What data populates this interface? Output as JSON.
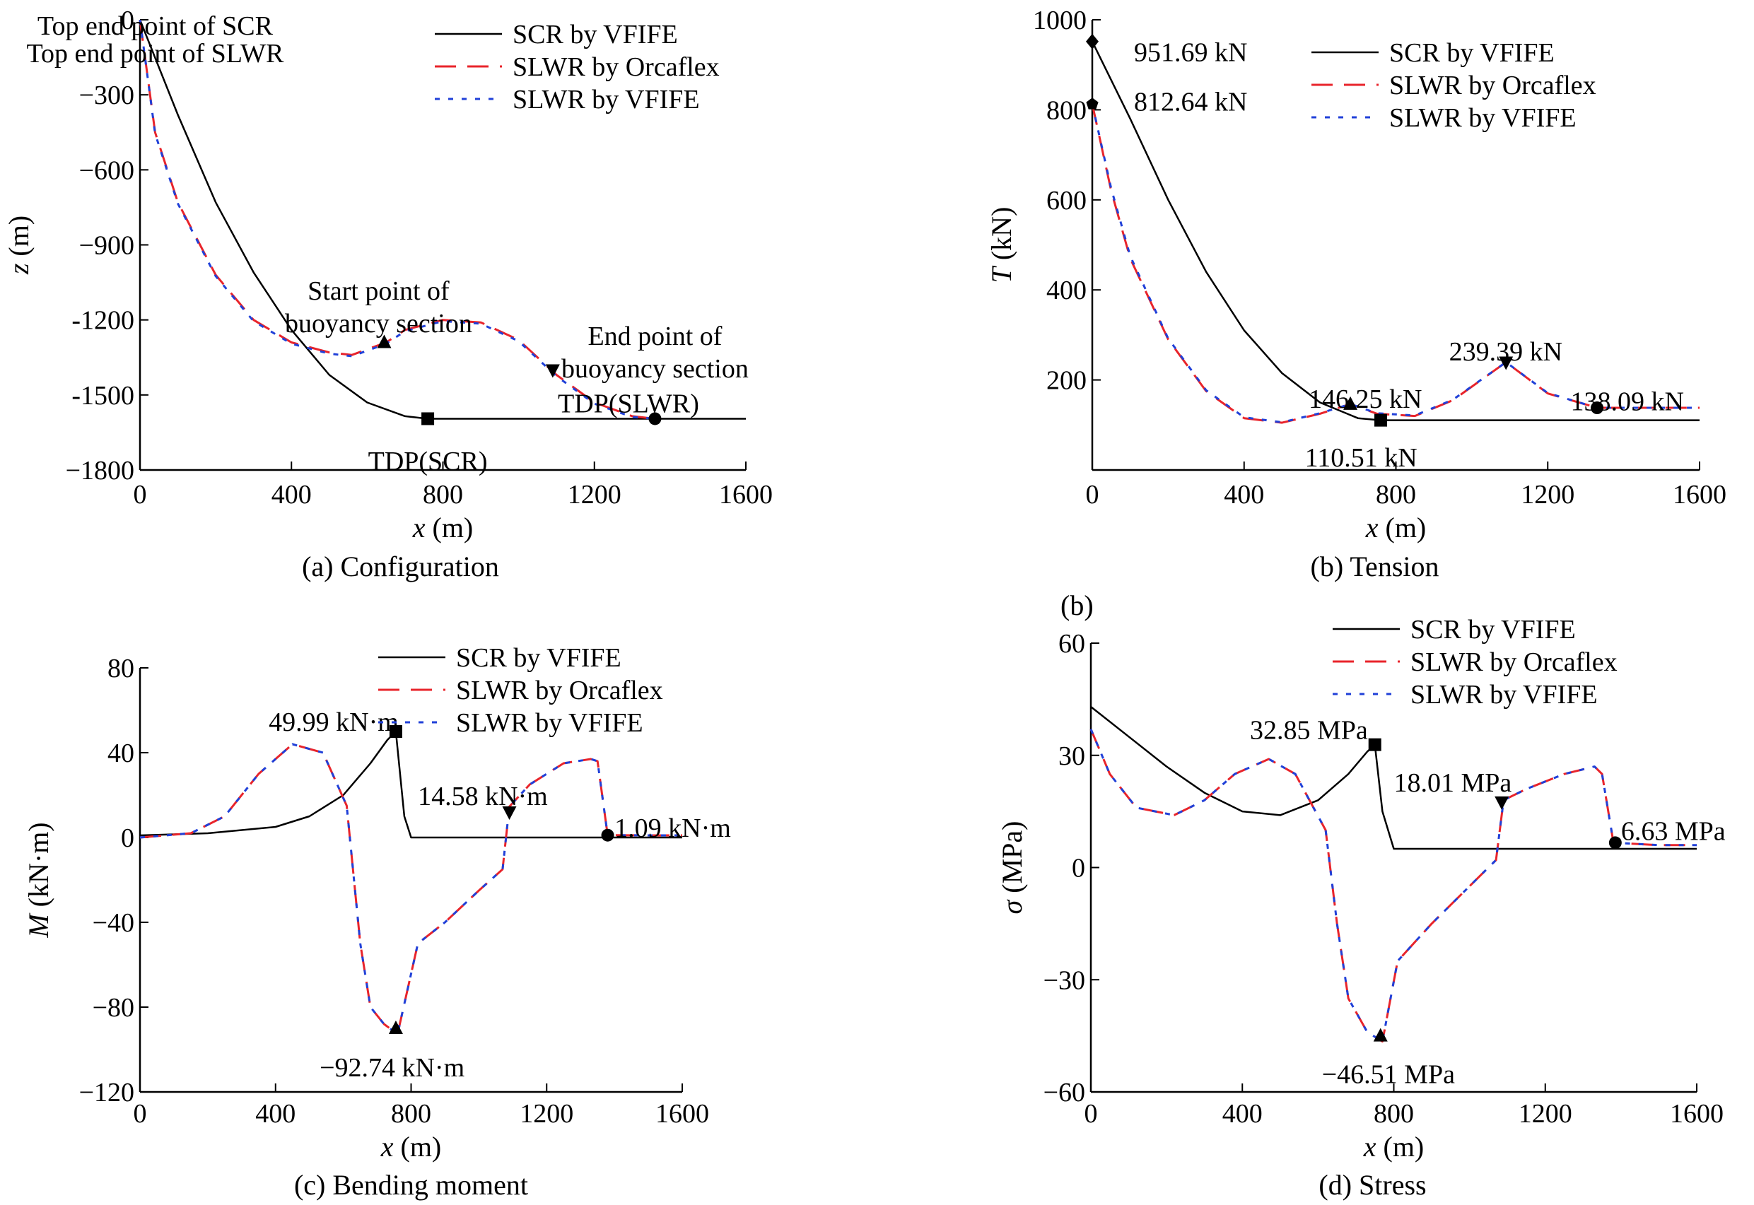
{
  "chart_data": [
    {
      "type": "line",
      "caption": "(a) Configuration",
      "xlabel_var": "x",
      "xlabel_unit": " (m)",
      "ylabel_var": "z",
      "ylabel_unit": " (m)",
      "xlim": [
        0,
        1600
      ],
      "ylim": [
        -1800,
        0
      ],
      "xticks": [
        0,
        400,
        800,
        1200,
        1600
      ],
      "yticks": [
        0,
        -300,
        -600,
        -900,
        -1200,
        -1500,
        -1800
      ],
      "ytick_labels": [
        "0",
        "−300",
        "−600",
        "−900",
        "-1200",
        "-1500",
        "−1800"
      ],
      "legend": [
        "SCR by VFIFE",
        "SLWR by Orcaflex",
        "SLWR by VFIFE"
      ],
      "series": [
        {
          "name": "SCR by VFIFE",
          "style": "solid",
          "x": [
            0,
            100,
            200,
            300,
            400,
            500,
            600,
            700,
            760,
            1600
          ],
          "y": [
            0,
            -380,
            -730,
            -1010,
            -1240,
            -1420,
            -1530,
            -1585,
            -1595,
            -1595
          ]
        },
        {
          "name": "SLWR by Orcaflex",
          "style": "dash",
          "x": [
            0,
            40,
            100,
            200,
            300,
            400,
            500,
            560,
            650,
            700,
            800,
            900,
            1000,
            1100,
            1200,
            1300,
            1360
          ],
          "y": [
            0,
            -450,
            -730,
            -1020,
            -1200,
            -1290,
            -1330,
            -1340,
            -1290,
            -1240,
            -1200,
            -1210,
            -1280,
            -1420,
            -1530,
            -1585,
            -1595
          ]
        },
        {
          "name": "SLWR by VFIFE",
          "style": "dot",
          "x": [
            0,
            40,
            100,
            200,
            300,
            400,
            500,
            560,
            650,
            700,
            800,
            900,
            1000,
            1100,
            1200,
            1300,
            1360
          ],
          "y": [
            0,
            -455,
            -735,
            -1025,
            -1205,
            -1295,
            -1335,
            -1345,
            -1295,
            -1245,
            -1205,
            -1215,
            -1285,
            -1425,
            -1535,
            -1588,
            -1595
          ]
        }
      ],
      "markers": [
        {
          "shape": "triangle-up",
          "x": 645,
          "y": -1290
        },
        {
          "shape": "triangle-down",
          "x": 1090,
          "y": -1400
        },
        {
          "shape": "square",
          "x": 760,
          "y": -1595
        },
        {
          "shape": "circle",
          "x": 1360,
          "y": -1595
        }
      ],
      "annotations": [
        {
          "text": "Top end point of SCR",
          "x": 40,
          "y": -20
        },
        {
          "text": "Top end point of SLWR",
          "x": 40,
          "y": -130
        },
        {
          "text": "Start point of",
          "x": 630,
          "y": -1080
        },
        {
          "text": "buoyancy section",
          "x": 630,
          "y": -1210
        },
        {
          "text": "End point of",
          "x": 1360,
          "y": -1260
        },
        {
          "text": "buoyancy section",
          "x": 1360,
          "y": -1390
        },
        {
          "text": "TDP(SLWR)",
          "x": 1290,
          "y": -1530
        },
        {
          "text": "TDP(SCR)",
          "x": 760,
          "y": -1760
        }
      ]
    },
    {
      "type": "line",
      "caption": "(b) Tension",
      "side_label": "(b)",
      "xlabel_var": "x",
      "xlabel_unit": " (m)",
      "ylabel_var": "T",
      "ylabel_unit": " (kN)",
      "xlim": [
        0,
        1600
      ],
      "ylim": [
        0,
        1000
      ],
      "xticks": [
        0,
        400,
        800,
        1200,
        1600
      ],
      "yticks": [
        200,
        400,
        600,
        800,
        1000
      ],
      "xtick_labels": [
        "0",
        "400",
        "800",
        "1200",
        "1600"
      ],
      "ytick_labels": [
        "200",
        "400",
        "600",
        "800",
        "1000"
      ],
      "legend": [
        "SCR by VFIFE",
        "SLWR by Orcaflex",
        "SLWR by VFIFE"
      ],
      "series": [
        {
          "name": "SCR by VFIFE",
          "style": "solid",
          "x": [
            0,
            100,
            200,
            300,
            400,
            500,
            600,
            700,
            760,
            1600
          ],
          "y": [
            951.69,
            780,
            600,
            440,
            310,
            215,
            150,
            115,
            110.51,
            110.51
          ]
        },
        {
          "name": "SLWR by Orcaflex",
          "style": "dash",
          "x": [
            0,
            50,
            100,
            200,
            300,
            400,
            500,
            600,
            680,
            750,
            850,
            950,
            1090,
            1200,
            1330,
            1600
          ],
          "y": [
            812.64,
            620,
            470,
            290,
            175,
            115,
            105,
            125,
            146.25,
            125,
            120,
            155,
            239.39,
            170,
            138.09,
            138.09
          ]
        },
        {
          "name": "SLWR by VFIFE",
          "style": "dot",
          "x": [
            0,
            50,
            100,
            200,
            300,
            400,
            500,
            600,
            680,
            750,
            850,
            950,
            1090,
            1200,
            1330,
            1600
          ],
          "y": [
            812.64,
            625,
            475,
            292,
            177,
            117,
            106,
            126,
            146.25,
            126,
            121,
            156,
            239.39,
            171,
            138.09,
            138.09
          ]
        }
      ],
      "markers": [
        {
          "shape": "diamond",
          "x": 0,
          "y": 951.69
        },
        {
          "shape": "pentagon",
          "x": 0,
          "y": 812.64
        },
        {
          "shape": "triangle-up",
          "x": 680,
          "y": 146.25
        },
        {
          "shape": "square",
          "x": 760,
          "y": 110.51
        },
        {
          "shape": "triangle-down",
          "x": 1090,
          "y": 239.39
        },
        {
          "shape": "circle",
          "x": 1330,
          "y": 138.09
        }
      ],
      "annotations": [
        {
          "text": "951.69 kN",
          "x": 110,
          "y": 930
        },
        {
          "text": "812.64 kN",
          "x": 110,
          "y": 820
        },
        {
          "text": "146.25 kN",
          "x": 570,
          "y": 160
        },
        {
          "text": "110.51 kN",
          "x": 560,
          "y": 30
        },
        {
          "text": "239.39 kN",
          "x": 940,
          "y": 265
        },
        {
          "text": "138.09 kN",
          "x": 1260,
          "y": 155
        }
      ]
    },
    {
      "type": "line",
      "caption": "(c) Bending moment",
      "xlabel_var": "x",
      "xlabel_unit": " (m)",
      "ylabel_var": "M",
      "ylabel_unit": " (kN·m)",
      "xlim": [
        0,
        1600
      ],
      "ylim": [
        -120,
        80
      ],
      "xticks": [
        0,
        400,
        800,
        1200,
        1600
      ],
      "yticks": [
        80,
        40,
        0,
        -40,
        -80,
        -120
      ],
      "ytick_labels": [
        "80",
        "40",
        "0",
        "−40",
        "−80",
        "−120"
      ],
      "legend": [
        "SCR by VFIFE",
        "SLWR by Orcaflex",
        "SLWR by VFIFE"
      ],
      "series": [
        {
          "name": "SCR by VFIFE",
          "style": "solid",
          "x": [
            0,
            200,
            400,
            500,
            600,
            680,
            730,
            755,
            780,
            800,
            1600
          ],
          "y": [
            1,
            2,
            5,
            10,
            20,
            35,
            46,
            49.99,
            10,
            0,
            0
          ]
        },
        {
          "name": "SLWR by Orcaflex",
          "style": "dash",
          "x": [
            0,
            150,
            250,
            350,
            450,
            540,
            610,
            650,
            680,
            720,
            760,
            820,
            900,
            1000,
            1070,
            1090,
            1150,
            1250,
            1330,
            1350,
            1380,
            1500,
            1600
          ],
          "y": [
            0,
            2,
            10,
            30,
            44,
            40,
            15,
            -50,
            -80,
            -88,
            -92.74,
            -50,
            -40,
            -25,
            -15,
            14.58,
            25,
            35,
            37,
            36,
            1.09,
            1,
            1
          ]
        },
        {
          "name": "SLWR by VFIFE",
          "style": "dot",
          "x": [
            0,
            150,
            250,
            350,
            450,
            540,
            610,
            650,
            680,
            720,
            760,
            820,
            900,
            1000,
            1070,
            1090,
            1150,
            1250,
            1330,
            1350,
            1380,
            1500,
            1600
          ],
          "y": [
            0,
            2,
            10,
            30,
            44,
            40,
            15,
            -50,
            -80,
            -88,
            -92.74,
            -50,
            -40,
            -25,
            -15,
            14.58,
            25,
            35,
            37,
            36,
            1.09,
            1,
            1
          ]
        }
      ],
      "markers": [
        {
          "shape": "square",
          "x": 755,
          "y": 49.99
        },
        {
          "shape": "triangle-down",
          "x": 1090,
          "y": 12
        },
        {
          "shape": "circle",
          "x": 1380,
          "y": 1.09
        },
        {
          "shape": "triangle-up",
          "x": 755,
          "y": -90
        }
      ],
      "annotations": [
        {
          "text": "49.99 kN·m",
          "x": 380,
          "y": 55
        },
        {
          "text": "14.58 kN·m",
          "x": 820,
          "y": 20
        },
        {
          "text": "1.09 kN·m",
          "x": 1400,
          "y": 5
        },
        {
          "text": "−92.74 kN·m",
          "x": 530,
          "y": -108
        }
      ]
    },
    {
      "type": "line",
      "caption": "(d) Stress",
      "xlabel_var": "x",
      "xlabel_unit": " (m)",
      "ylabel_var": "σ",
      "ylabel_unit": " (MPa)",
      "xlim": [
        0,
        1600
      ],
      "ylim": [
        -60,
        60
      ],
      "xticks": [
        0,
        400,
        800,
        1200,
        1600
      ],
      "yticks": [
        60,
        30,
        0,
        -30,
        -60
      ],
      "ytick_labels": [
        "60",
        "30",
        "0",
        "−30",
        "−60"
      ],
      "legend": [
        "SCR by VFIFE",
        "SLWR by Orcaflex",
        "SLWR by VFIFE"
      ],
      "series": [
        {
          "name": "SCR by VFIFE",
          "style": "solid",
          "x": [
            0,
            100,
            200,
            300,
            400,
            500,
            600,
            680,
            730,
            750,
            770,
            800,
            1600
          ],
          "y": [
            43,
            35,
            27,
            20,
            15,
            14,
            18,
            25,
            31,
            32.85,
            15,
            5,
            5
          ]
        },
        {
          "name": "SLWR by Orcaflex",
          "style": "dash",
          "x": [
            0,
            50,
            120,
            220,
            300,
            380,
            470,
            540,
            620,
            650,
            680,
            730,
            770,
            810,
            900,
            1000,
            1070,
            1090,
            1150,
            1250,
            1330,
            1350,
            1380,
            1500,
            1600
          ],
          "y": [
            37,
            25,
            16,
            14,
            18,
            25,
            29,
            25,
            10,
            -15,
            -35,
            -44,
            -46.51,
            -25,
            -15,
            -5,
            2,
            18.01,
            21,
            25,
            27,
            25,
            6.63,
            6,
            6
          ]
        },
        {
          "name": "SLWR by VFIFE",
          "style": "dot",
          "x": [
            0,
            50,
            120,
            220,
            300,
            380,
            470,
            540,
            620,
            650,
            680,
            730,
            770,
            810,
            900,
            1000,
            1070,
            1090,
            1150,
            1250,
            1330,
            1350,
            1380,
            1500,
            1600
          ],
          "y": [
            37,
            25,
            16,
            14,
            18,
            25,
            29,
            25,
            10,
            -15,
            -35,
            -44,
            -46.51,
            -25,
            -15,
            -5,
            2,
            18.01,
            21,
            25,
            27,
            25,
            6.63,
            6,
            6
          ]
        }
      ],
      "markers": [
        {
          "shape": "square",
          "x": 750,
          "y": 32.85
        },
        {
          "shape": "triangle-down",
          "x": 1085,
          "y": 17.5
        },
        {
          "shape": "circle",
          "x": 1385,
          "y": 6.63
        },
        {
          "shape": "triangle-up",
          "x": 765,
          "y": -45
        }
      ],
      "annotations": [
        {
          "text": "32.85 MPa",
          "x": 420,
          "y": 37
        },
        {
          "text": "18.01 MPa",
          "x": 800,
          "y": 23
        },
        {
          "text": "6.63 MPa",
          "x": 1400,
          "y": 10
        },
        {
          "text": "−46.51 MPa",
          "x": 610,
          "y": -55
        }
      ]
    }
  ],
  "colors": {
    "axis": "#000000",
    "scr": "#000000",
    "orcaflex": "#e8242b",
    "vfife_slwr": "#2040d8"
  }
}
